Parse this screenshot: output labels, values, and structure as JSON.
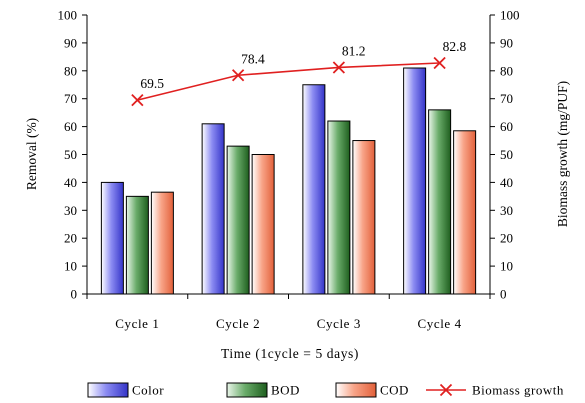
{
  "chart_data": {
    "type": "bar",
    "categories": [
      "Cycle 1",
      "Cycle 2",
      "Cycle 3",
      "Cycle 4"
    ],
    "xlabel": "Time (1cycle = 5 days)",
    "ylabel": "Removal (%)",
    "y2label": "Biomass growth (mg/PUF)",
    "ylim": [
      0,
      100
    ],
    "y2lim": [
      0,
      100
    ],
    "yticks": [
      0,
      10,
      20,
      30,
      40,
      50,
      60,
      70,
      80,
      90,
      100
    ],
    "grid": false,
    "legend_position": "bottom",
    "series": [
      {
        "name": "Color",
        "type": "bar",
        "values": [
          40,
          61,
          75,
          81
        ],
        "color": "#5B5BE6"
      },
      {
        "name": "BOD",
        "type": "bar",
        "values": [
          35,
          53,
          62,
          66
        ],
        "color": "#3F8A3F"
      },
      {
        "name": "COD",
        "type": "bar",
        "values": [
          36.5,
          50,
          55,
          58.5
        ],
        "color": "#F08060"
      },
      {
        "name": "Biomass growth",
        "type": "line",
        "axis": "right",
        "values": [
          69.5,
          78.4,
          81.2,
          82.8
        ],
        "labels": [
          "69.5",
          "78.4",
          "81.2",
          "82.8"
        ],
        "color": "#E02020"
      }
    ]
  }
}
